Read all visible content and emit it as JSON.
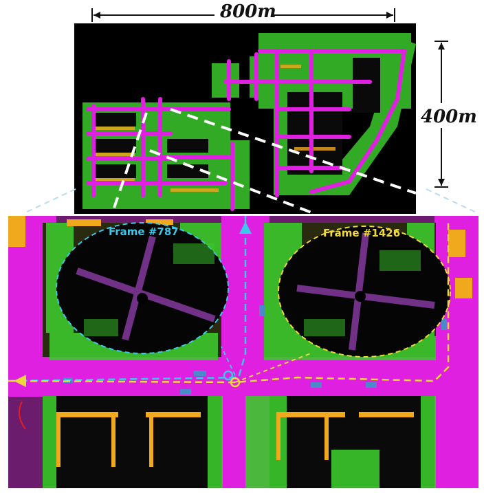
{
  "figure": {
    "scale_width_label": "800m",
    "scale_height_label": "400m",
    "frames": [
      {
        "label": "Frame #787",
        "color": "#3cc8e8"
      },
      {
        "label": "Frame #1426",
        "color": "#f0d83c"
      }
    ],
    "colors": {
      "road": "#e020e0",
      "vegetation": "#3cc82c",
      "building": "#f0a81c",
      "ground": "#6c1c6c",
      "trajectory_cyan": "#3cc8e8",
      "trajectory_yellow": "#f0d83c"
    }
  }
}
